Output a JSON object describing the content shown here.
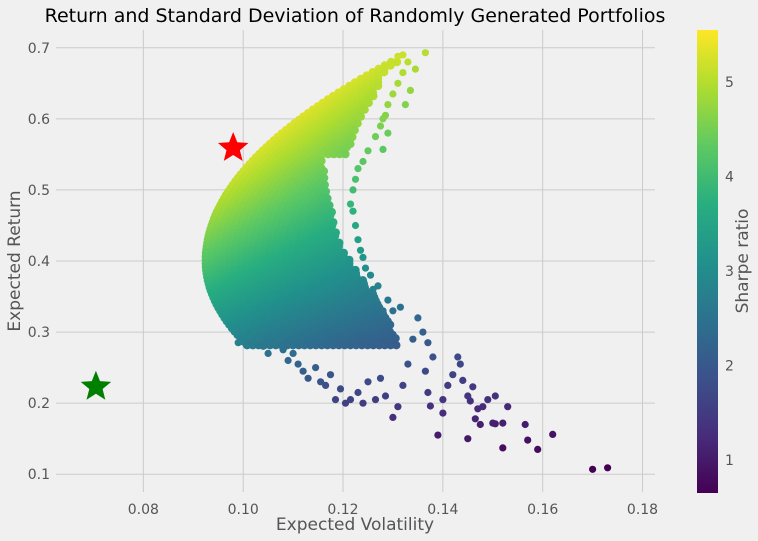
{
  "chart_data": {
    "type": "scatter",
    "title": "Return and Standard Deviation of Randomly Generated Portfolios",
    "xlabel": "Expected Volatility",
    "ylabel": "Expected Return",
    "xlim": [
      0.0625,
      0.1825
    ],
    "ylim": [
      0.075,
      0.725
    ],
    "xticks": [
      0.08,
      0.1,
      0.12,
      0.14,
      0.16,
      0.18
    ],
    "xtick_labels": [
      "0.08",
      "0.10",
      "0.12",
      "0.14",
      "0.16",
      "0.18"
    ],
    "yticks": [
      0.1,
      0.2,
      0.3,
      0.4,
      0.5,
      0.6,
      0.7
    ],
    "ytick_labels": [
      "0.1",
      "0.2",
      "0.3",
      "0.4",
      "0.5",
      "0.6",
      "0.7"
    ],
    "grid": true,
    "colorbar": {
      "label": "Sharpe ratio",
      "colormap": "viridis",
      "range": [
        0.65,
        5.55
      ],
      "ticks": [
        1,
        2,
        3,
        4,
        5
      ],
      "tick_labels": [
        "1",
        "2",
        "3",
        "4",
        "5"
      ]
    },
    "frontier": {
      "min_vol_point": [
        0.0925,
        0.4
      ],
      "top_point": [
        0.131,
        0.685
      ],
      "bottom_point": [
        0.173,
        0.108
      ]
    },
    "markers": [
      {
        "shape": "star",
        "color": "#ff0000",
        "x": 0.098,
        "y": 0.559
      },
      {
        "shape": "star",
        "color": "#008000",
        "x": 0.0705,
        "y": 0.223
      }
    ],
    "points": [
      [
        0.17,
        0.107
      ],
      [
        0.173,
        0.109
      ],
      [
        0.162,
        0.156
      ],
      [
        0.159,
        0.135
      ],
      [
        0.157,
        0.148
      ],
      [
        0.1565,
        0.17
      ],
      [
        0.152,
        0.137
      ],
      [
        0.152,
        0.172
      ],
      [
        0.1505,
        0.171
      ],
      [
        0.15,
        0.172
      ],
      [
        0.145,
        0.15
      ],
      [
        0.1465,
        0.178
      ],
      [
        0.1475,
        0.17
      ],
      [
        0.153,
        0.195
      ],
      [
        0.1505,
        0.21
      ],
      [
        0.149,
        0.205
      ],
      [
        0.148,
        0.195
      ],
      [
        0.147,
        0.192
      ],
      [
        0.1455,
        0.203
      ],
      [
        0.146,
        0.223
      ],
      [
        0.145,
        0.21
      ],
      [
        0.144,
        0.232
      ],
      [
        0.1435,
        0.255
      ],
      [
        0.143,
        0.265
      ],
      [
        0.142,
        0.24
      ],
      [
        0.141,
        0.225
      ],
      [
        0.14,
        0.205
      ],
      [
        0.14,
        0.186
      ],
      [
        0.139,
        0.155
      ],
      [
        0.1375,
        0.196
      ],
      [
        0.137,
        0.215
      ],
      [
        0.1365,
        0.245
      ],
      [
        0.138,
        0.265
      ],
      [
        0.137,
        0.285
      ],
      [
        0.136,
        0.3
      ],
      [
        0.135,
        0.32
      ],
      [
        0.134,
        0.29
      ],
      [
        0.133,
        0.255
      ],
      [
        0.132,
        0.225
      ],
      [
        0.131,
        0.195
      ],
      [
        0.13,
        0.18
      ],
      [
        0.1285,
        0.21
      ],
      [
        0.1275,
        0.235
      ],
      [
        0.1265,
        0.205
      ],
      [
        0.125,
        0.23
      ],
      [
        0.124,
        0.2
      ],
      [
        0.123,
        0.215
      ],
      [
        0.1215,
        0.205
      ],
      [
        0.1205,
        0.2
      ],
      [
        0.1195,
        0.22
      ],
      [
        0.1185,
        0.205
      ],
      [
        0.1175,
        0.24
      ],
      [
        0.1165,
        0.225
      ],
      [
        0.1155,
        0.23
      ],
      [
        0.1145,
        0.25
      ],
      [
        0.113,
        0.235
      ],
      [
        0.112,
        0.245
      ],
      [
        0.111,
        0.255
      ],
      [
        0.11,
        0.27
      ],
      [
        0.109,
        0.26
      ],
      [
        0.108,
        0.275
      ],
      [
        0.107,
        0.29
      ],
      [
        0.106,
        0.285
      ],
      [
        0.105,
        0.27
      ],
      [
        0.104,
        0.28
      ],
      [
        0.103,
        0.29
      ],
      [
        0.102,
        0.3
      ],
      [
        0.101,
        0.295
      ],
      [
        0.1,
        0.305
      ],
      [
        0.099,
        0.285
      ],
      [
        0.1315,
        0.335
      ],
      [
        0.13,
        0.33
      ],
      [
        0.129,
        0.345
      ],
      [
        0.128,
        0.33
      ],
      [
        0.127,
        0.365
      ],
      [
        0.126,
        0.36
      ],
      [
        0.1255,
        0.38
      ],
      [
        0.1245,
        0.39
      ],
      [
        0.124,
        0.405
      ],
      [
        0.1235,
        0.415
      ],
      [
        0.123,
        0.43
      ],
      [
        0.1225,
        0.45
      ],
      [
        0.122,
        0.47
      ],
      [
        0.1215,
        0.48
      ],
      [
        0.122,
        0.5
      ],
      [
        0.1225,
        0.515
      ],
      [
        0.123,
        0.53
      ],
      [
        0.124,
        0.54
      ],
      [
        0.125,
        0.555
      ],
      [
        0.1265,
        0.575
      ],
      [
        0.1275,
        0.59
      ],
      [
        0.1285,
        0.605
      ],
      [
        0.129,
        0.62
      ],
      [
        0.128,
        0.557
      ],
      [
        0.13,
        0.635
      ],
      [
        0.131,
        0.65
      ],
      [
        0.132,
        0.665
      ],
      [
        0.133,
        0.68
      ],
      [
        0.131,
        0.688
      ],
      [
        0.132,
        0.69
      ],
      [
        0.1345,
        0.67
      ],
      [
        0.1365,
        0.693
      ],
      [
        0.1335,
        0.64
      ],
      [
        0.1325,
        0.62
      ],
      [
        0.129,
        0.58
      ],
      [
        0.128,
        0.6
      ]
    ]
  }
}
